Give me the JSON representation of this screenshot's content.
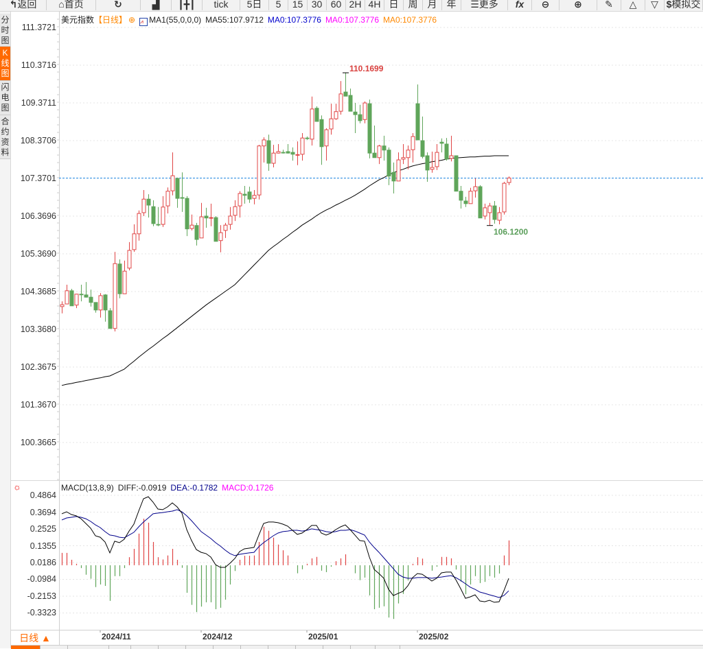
{
  "toolbar": {
    "buttons": [
      {
        "icon": "back-arrow-icon",
        "label": "返回"
      },
      {
        "icon": "home-icon",
        "label": "首页"
      },
      {
        "icon": "refresh-icon",
        "label": ""
      },
      {
        "icon": "bar-chart-icon",
        "label": ""
      },
      {
        "icon": "candlestick-icon",
        "label": ""
      },
      {
        "icon": "",
        "label": "tick"
      },
      {
        "icon": "",
        "label": "5日"
      },
      {
        "icon": "",
        "label": "5"
      },
      {
        "icon": "",
        "label": "15"
      },
      {
        "icon": "",
        "label": "30"
      },
      {
        "icon": "",
        "label": "60"
      },
      {
        "icon": "",
        "label": "2H"
      },
      {
        "icon": "",
        "label": "4H"
      },
      {
        "icon": "",
        "label": "日"
      },
      {
        "icon": "",
        "label": "周"
      },
      {
        "icon": "",
        "label": "月"
      },
      {
        "icon": "",
        "label": "年"
      },
      {
        "icon": "menu-icon",
        "label": "更多"
      },
      {
        "icon": "function-icon",
        "label": "fx"
      },
      {
        "icon": "zoom-out-icon",
        "label": ""
      },
      {
        "icon": "zoom-in-icon",
        "label": ""
      },
      {
        "icon": "pen-icon",
        "label": ""
      },
      {
        "icon": "triangle-up-icon",
        "label": ""
      },
      {
        "icon": "triangle-down-icon",
        "label": ""
      },
      {
        "icon": "dollar-icon",
        "label": "模拟交"
      }
    ]
  },
  "sidebar": {
    "items": [
      {
        "label": "分时图",
        "active": false
      },
      {
        "label": "K线图",
        "active": true
      },
      {
        "label": "闪电图",
        "active": false
      },
      {
        "label": "合约资料",
        "active": false
      }
    ]
  },
  "legend": {
    "symbol": "美元指数",
    "period": "【日线】",
    "ma_setting": "MA1(55,0,0,0)",
    "ma55": "MA55:107.9712",
    "ma0_a": "MA0:107.3776",
    "ma0_b": "MA0:107.3776",
    "ma0_c": "MA0:107.3776"
  },
  "macd_legend": {
    "name": "MACD(13,8,9)",
    "diff": "DIFF:-0.0919",
    "dea": "DEA:-0.1782",
    "macd": "MACD:0.1726"
  },
  "bottom": {
    "period_label": "日线 ▲"
  },
  "colors": {
    "up": "#e04444",
    "down": "#5fa55a",
    "ma55": "#000000",
    "ma0_a": "#0000cc",
    "ma0_b": "#ff00ff",
    "ma0_c": "#ff8800",
    "current_price_line": "#1e88e5",
    "diff": "#000000",
    "dea": "#00008b",
    "accent": "#ff6a00"
  },
  "chart_data": [
    {
      "type": "candlestick",
      "title": "美元指数",
      "current_price": 107.3776,
      "ylim": [
        100.3665,
        111.3721
      ],
      "y_ticks": [
        "111.3721",
        "110.3716",
        "109.3711",
        "108.3706",
        "107.3701",
        "106.3696",
        "105.3690",
        "104.3685",
        "103.3680",
        "102.3675",
        "101.3670",
        "100.3665"
      ],
      "x_ticks": [
        {
          "label": "2024/11",
          "candle": 9
        },
        {
          "label": "2024/12",
          "candle": 30
        },
        {
          "label": "2025/01",
          "candle": 52
        },
        {
          "label": "2025/02",
          "candle": 75
        }
      ],
      "annotations": [
        {
          "text": "110.1699",
          "candle": 60,
          "price": 110.1699,
          "kind": "high"
        },
        {
          "text": "106.1200",
          "candle": 90,
          "price": 106.12,
          "kind": "low"
        }
      ],
      "grid": true,
      "ohlc": [
        [
          103.97,
          104.11,
          103.79,
          104.02
        ],
        [
          104.04,
          104.55,
          104.04,
          104.39
        ],
        [
          104.39,
          104.44,
          103.99,
          103.99
        ],
        [
          104.01,
          104.31,
          103.93,
          104.3
        ],
        [
          104.3,
          104.55,
          104.11,
          104.29
        ],
        [
          104.28,
          104.62,
          104.21,
          104.22
        ],
        [
          104.22,
          104.42,
          103.97,
          104.08
        ],
        [
          104.08,
          104.08,
          103.81,
          103.88
        ],
        [
          103.88,
          104.33,
          103.68,
          104.26
        ],
        [
          104.28,
          104.3,
          103.57,
          103.88
        ],
        [
          103.86,
          103.93,
          103.39,
          103.39
        ],
        [
          103.39,
          105.42,
          103.31,
          105.11
        ],
        [
          105.1,
          105.22,
          104.19,
          104.31
        ],
        [
          104.31,
          105.19,
          104.31,
          104.91
        ],
        [
          104.99,
          105.68,
          104.93,
          105.46
        ],
        [
          105.48,
          106.15,
          105.42,
          105.9
        ],
        [
          105.9,
          106.52,
          105.72,
          106.44
        ],
        [
          106.46,
          107.06,
          106.37,
          106.82
        ],
        [
          106.82,
          106.95,
          106.33,
          106.66
        ],
        [
          106.62,
          106.79,
          106.1,
          106.17
        ],
        [
          106.15,
          106.61,
          106.1,
          106.14
        ],
        [
          106.15,
          106.9,
          106.08,
          106.61
        ],
        [
          106.64,
          107.13,
          106.44,
          107.03
        ],
        [
          107.04,
          108.06,
          106.92,
          107.44
        ],
        [
          107.37,
          107.39,
          106.59,
          106.84
        ],
        [
          106.86,
          107.53,
          106.48,
          106.85
        ],
        [
          106.84,
          106.9,
          105.84,
          106.03
        ],
        [
          106.04,
          106.41,
          105.99,
          106.13
        ],
        [
          106.12,
          106.19,
          105.59,
          105.75
        ],
        [
          105.79,
          106.72,
          105.79,
          106.35
        ],
        [
          106.37,
          106.59,
          106.06,
          106.32
        ],
        [
          106.32,
          106.7,
          106.1,
          106.33
        ],
        [
          106.33,
          106.37,
          105.7,
          105.7
        ],
        [
          105.72,
          106.13,
          105.41,
          105.93
        ],
        [
          105.99,
          106.19,
          105.79,
          106.13
        ],
        [
          106.15,
          106.61,
          106.01,
          106.37
        ],
        [
          106.39,
          106.79,
          106.24,
          106.62
        ],
        [
          106.64,
          107.03,
          106.33,
          106.97
        ],
        [
          106.95,
          107.17,
          106.7,
          106.92
        ],
        [
          107.01,
          107.15,
          106.72,
          106.82
        ],
        [
          106.84,
          107.06,
          106.68,
          106.92
        ],
        [
          106.93,
          108.26,
          106.81,
          108.23
        ],
        [
          108.23,
          108.46,
          107.79,
          108.39
        ],
        [
          108.37,
          108.53,
          107.57,
          107.77
        ],
        [
          107.77,
          108.26,
          107.66,
          108.04
        ],
        [
          108.04,
          108.28,
          108.03,
          108.08
        ],
        [
          108.06,
          108.13,
          108.03,
          108.05
        ],
        [
          108.08,
          108.28,
          108.03,
          108.04
        ],
        [
          108.06,
          108.19,
          107.84,
          108.01
        ],
        [
          107.99,
          108.35,
          107.72,
          108.0
        ],
        [
          108.01,
          108.57,
          107.84,
          108.44
        ],
        [
          108.44,
          108.48,
          108.39,
          108.43
        ],
        [
          108.41,
          109.54,
          108.24,
          109.21
        ],
        [
          109.23,
          109.28,
          108.88,
          108.88
        ],
        [
          108.93,
          109.04,
          107.73,
          108.21
        ],
        [
          108.23,
          108.7,
          107.84,
          108.66
        ],
        [
          108.68,
          109.35,
          108.53,
          108.95
        ],
        [
          108.95,
          109.35,
          108.92,
          109.14
        ],
        [
          109.15,
          109.95,
          109.06,
          109.61
        ],
        [
          109.66,
          110.1699,
          109.55,
          109.55
        ],
        [
          109.57,
          109.75,
          109.15,
          109.15
        ],
        [
          109.13,
          109.37,
          108.57,
          109.06
        ],
        [
          109.06,
          109.32,
          108.83,
          108.9
        ],
        [
          108.93,
          109.41,
          108.83,
          109.37
        ],
        [
          109.35,
          109.46,
          107.9,
          108.04
        ],
        [
          108.04,
          108.77,
          107.92,
          107.92
        ],
        [
          107.92,
          108.26,
          107.75,
          108.23
        ],
        [
          108.23,
          108.5,
          107.84,
          108.12
        ],
        [
          108.12,
          108.19,
          107.19,
          107.43
        ],
        [
          107.53,
          107.79,
          106.97,
          107.3
        ],
        [
          107.3,
          108.06,
          107.3,
          107.86
        ],
        [
          107.88,
          108.28,
          107.75,
          107.92
        ],
        [
          107.92,
          108.24,
          107.61,
          108.12
        ],
        [
          108.13,
          108.57,
          107.79,
          108.48
        ],
        [
          109.35,
          109.86,
          108.39,
          108.39
        ],
        [
          108.37,
          109.01,
          107.9,
          107.95
        ],
        [
          107.97,
          108.06,
          107.28,
          107.59
        ],
        [
          107.61,
          108.08,
          107.52,
          107.66
        ],
        [
          107.68,
          108.28,
          107.59,
          108.06
        ],
        [
          108.33,
          108.43,
          108.06,
          108.3
        ],
        [
          108.28,
          108.44,
          107.84,
          107.88
        ],
        [
          107.9,
          108.5,
          107.82,
          107.97
        ],
        [
          107.97,
          107.97,
          107.03,
          107.03
        ],
        [
          107.03,
          107.17,
          106.57,
          106.79
        ],
        [
          106.77,
          106.88,
          106.61,
          106.7
        ],
        [
          106.7,
          107.12,
          106.7,
          107.03
        ],
        [
          107.04,
          107.37,
          106.86,
          107.15
        ],
        [
          107.15,
          107.19,
          106.32,
          106.32
        ],
        [
          106.37,
          106.7,
          106.28,
          106.59
        ],
        [
          106.46,
          106.72,
          106.12,
          106.64
        ],
        [
          106.64,
          106.77,
          106.17,
          106.28
        ],
        [
          106.26,
          106.61,
          106.15,
          106.46
        ],
        [
          106.48,
          107.28,
          106.41,
          107.24
        ],
        [
          107.26,
          107.42,
          107.19,
          107.38
        ]
      ],
      "ma55": [
        101.88,
        101.91,
        101.93,
        101.96,
        101.98,
        102.01,
        102.03,
        102.06,
        102.08,
        102.11,
        102.13,
        102.19,
        102.25,
        102.31,
        102.42,
        102.52,
        102.63,
        102.73,
        102.83,
        102.92,
        103.02,
        103.12,
        103.21,
        103.31,
        103.41,
        103.51,
        103.61,
        103.71,
        103.81,
        103.91,
        104.01,
        104.1,
        104.19,
        104.28,
        104.37,
        104.46,
        104.55,
        104.68,
        104.81,
        104.94,
        105.07,
        105.2,
        105.33,
        105.46,
        105.56,
        105.65,
        105.75,
        105.84,
        105.94,
        106.03,
        106.13,
        106.21,
        106.29,
        106.38,
        106.46,
        106.53,
        106.59,
        106.66,
        106.72,
        106.79,
        106.85,
        106.92,
        107.0,
        107.08,
        107.17,
        107.25,
        107.33,
        107.39,
        107.46,
        107.52,
        107.57,
        107.61,
        107.66,
        107.7,
        107.73,
        107.76,
        107.78,
        107.81,
        107.83,
        107.85,
        107.88,
        107.9,
        107.91,
        107.92,
        107.93,
        107.94,
        107.94,
        107.95,
        107.96,
        107.96,
        107.97,
        107.97,
        107.97,
        107.97
      ]
    },
    {
      "type": "macd",
      "title": "MACD(13,8,9)",
      "ylim": [
        -0.4,
        0.5
      ],
      "y_ticks": [
        "0.4864",
        "0.3694",
        "0.2525",
        "0.1355",
        "0.0186",
        "-0.0984",
        "-0.2153",
        "-0.3323"
      ],
      "grid": true,
      "diff": [
        0.358,
        0.372,
        0.353,
        0.344,
        0.324,
        0.291,
        0.258,
        0.205,
        0.195,
        0.162,
        0.086,
        0.167,
        0.157,
        0.181,
        0.238,
        0.286,
        0.377,
        0.463,
        0.477,
        0.439,
        0.391,
        0.387,
        0.406,
        0.434,
        0.406,
        0.363,
        0.248,
        0.172,
        0.109,
        0.09,
        0.081,
        0.057,
        0.004,
        -0.015,
        -0.015,
        0.014,
        0.047,
        0.095,
        0.114,
        0.119,
        0.124,
        0.21,
        0.291,
        0.301,
        0.301,
        0.296,
        0.286,
        0.272,
        0.243,
        0.215,
        0.224,
        0.248,
        0.277,
        0.277,
        0.224,
        0.21,
        0.224,
        0.248,
        0.267,
        0.281,
        0.248,
        0.21,
        0.172,
        0.167,
        0.057,
        -0.029,
        -0.058,
        -0.091,
        -0.168,
        -0.211,
        -0.196,
        -0.182,
        -0.144,
        -0.086,
        -0.058,
        -0.063,
        -0.086,
        -0.11,
        -0.091,
        -0.053,
        -0.048,
        -0.048,
        -0.101,
        -0.163,
        -0.23,
        -0.22,
        -0.206,
        -0.249,
        -0.254,
        -0.244,
        -0.258,
        -0.254,
        -0.177,
        -0.0919
      ],
      "dea": [
        0.315,
        0.329,
        0.334,
        0.339,
        0.334,
        0.324,
        0.305,
        0.281,
        0.262,
        0.234,
        0.21,
        0.205,
        0.195,
        0.191,
        0.21,
        0.229,
        0.267,
        0.301,
        0.329,
        0.358,
        0.363,
        0.367,
        0.372,
        0.377,
        0.387,
        0.372,
        0.344,
        0.31,
        0.272,
        0.234,
        0.21,
        0.186,
        0.157,
        0.133,
        0.105,
        0.081,
        0.067,
        0.076,
        0.081,
        0.086,
        0.09,
        0.129,
        0.157,
        0.181,
        0.205,
        0.224,
        0.234,
        0.238,
        0.243,
        0.243,
        0.238,
        0.243,
        0.253,
        0.248,
        0.243,
        0.234,
        0.229,
        0.234,
        0.243,
        0.243,
        0.248,
        0.238,
        0.224,
        0.21,
        0.162,
        0.124,
        0.09,
        0.052,
        0.014,
        -0.024,
        -0.063,
        -0.082,
        -0.091,
        -0.091,
        -0.086,
        -0.086,
        -0.086,
        -0.091,
        -0.086,
        -0.082,
        -0.077,
        -0.072,
        -0.086,
        -0.106,
        -0.129,
        -0.153,
        -0.168,
        -0.187,
        -0.196,
        -0.206,
        -0.215,
        -0.225,
        -0.211,
        -0.1782
      ]
    }
  ]
}
